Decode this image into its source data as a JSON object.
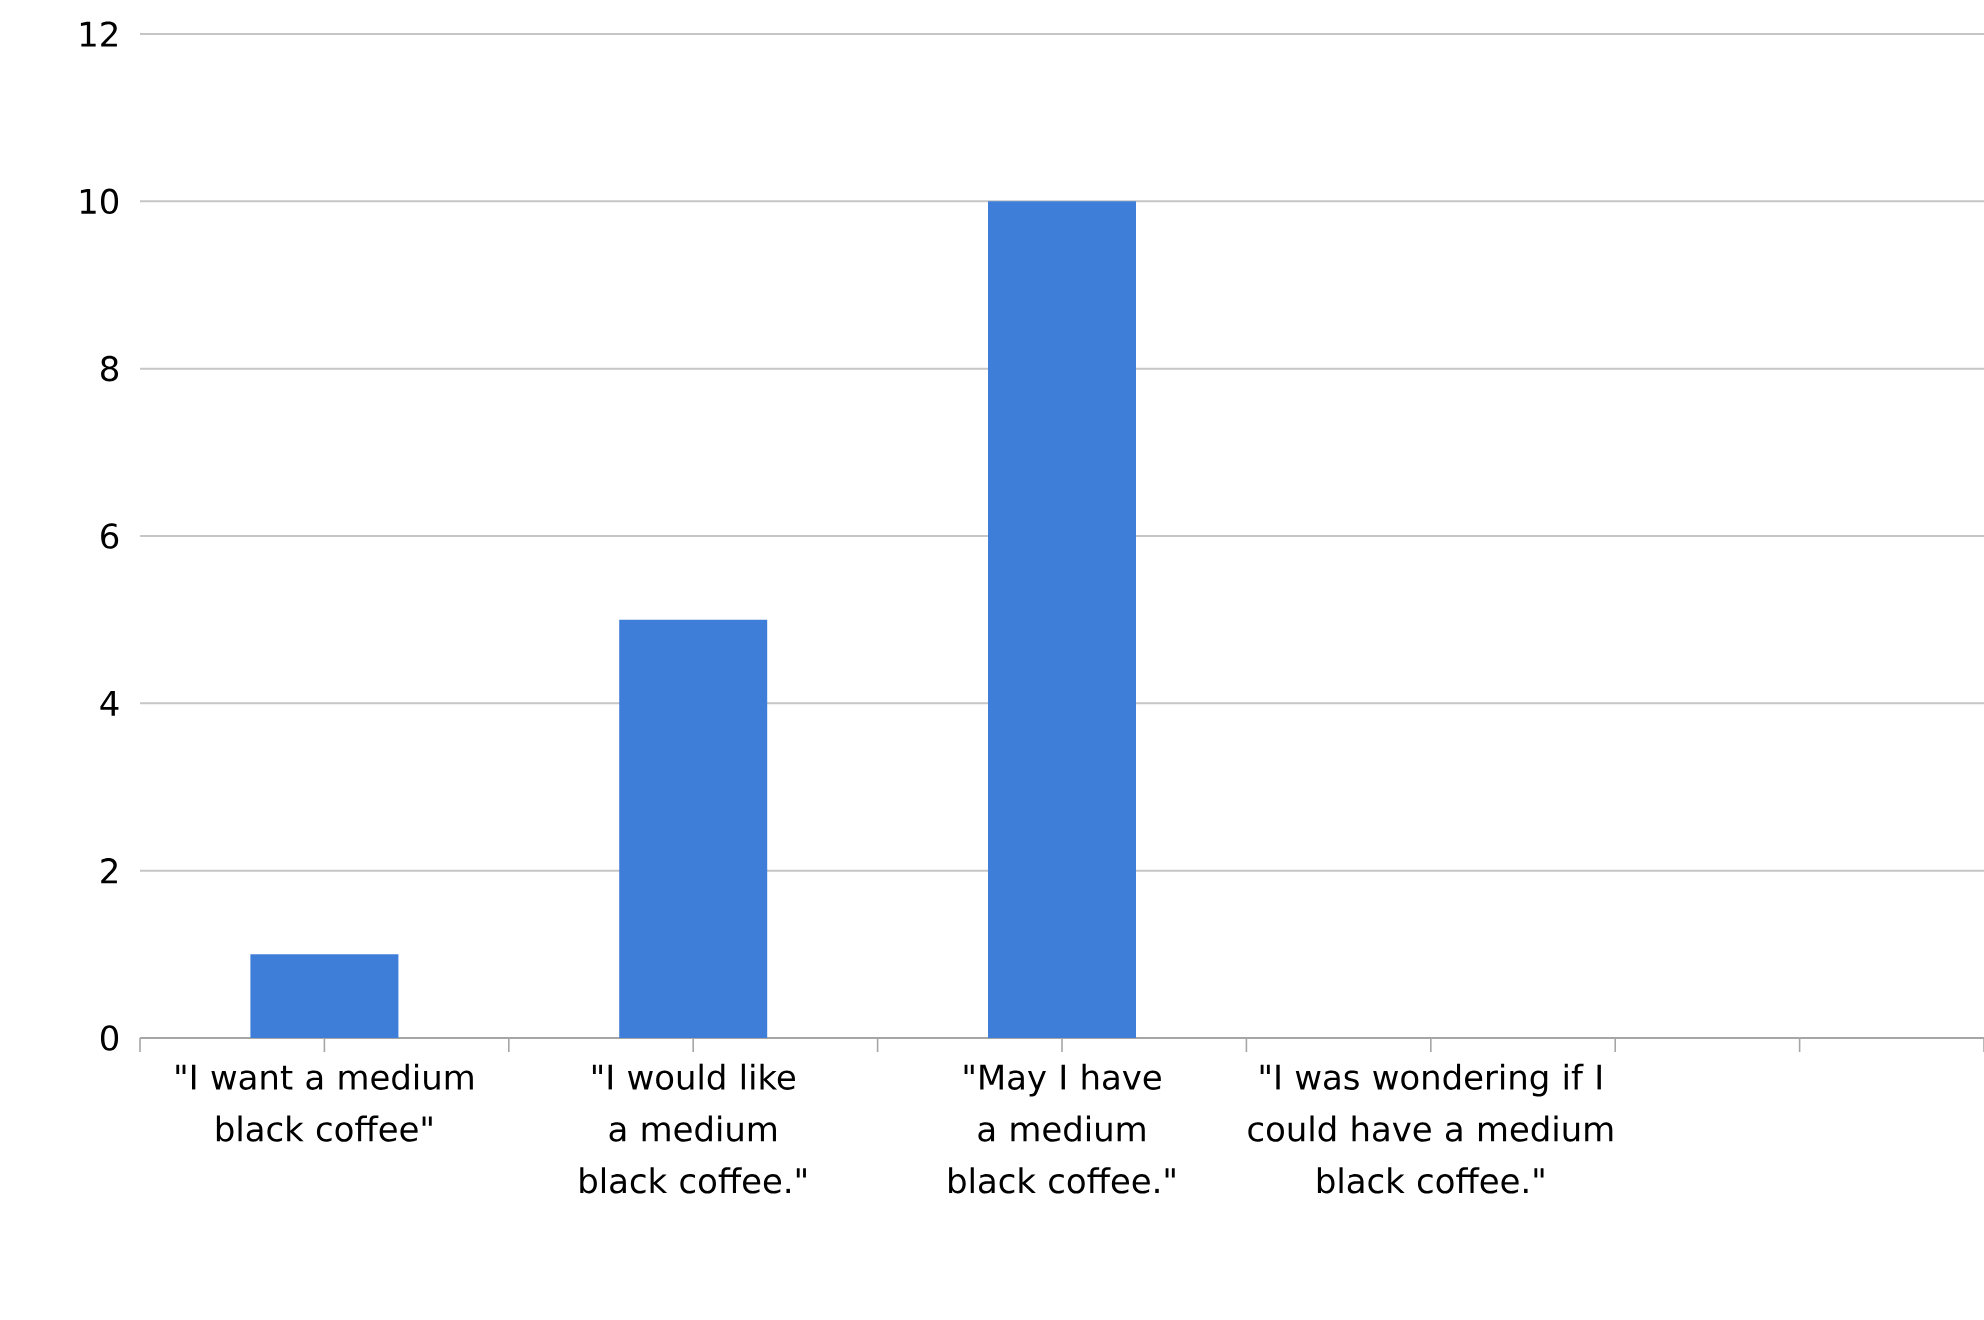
{
  "chart_data": {
    "type": "bar",
    "categories": [
      "\"I want a medium black coffee\"",
      "\"I would like a medium black coffee.\"",
      "\"May I have a medium black coffee.\"",
      "\"I was wondering if I could have a medium black coffee.\"",
      null
    ],
    "values": [
      1,
      5,
      10,
      0,
      null
    ],
    "color": "#3f7ed8",
    "ylim": [
      0,
      12
    ],
    "yticks": [
      0,
      2,
      4,
      6,
      8,
      10,
      12
    ],
    "grid": "y"
  }
}
